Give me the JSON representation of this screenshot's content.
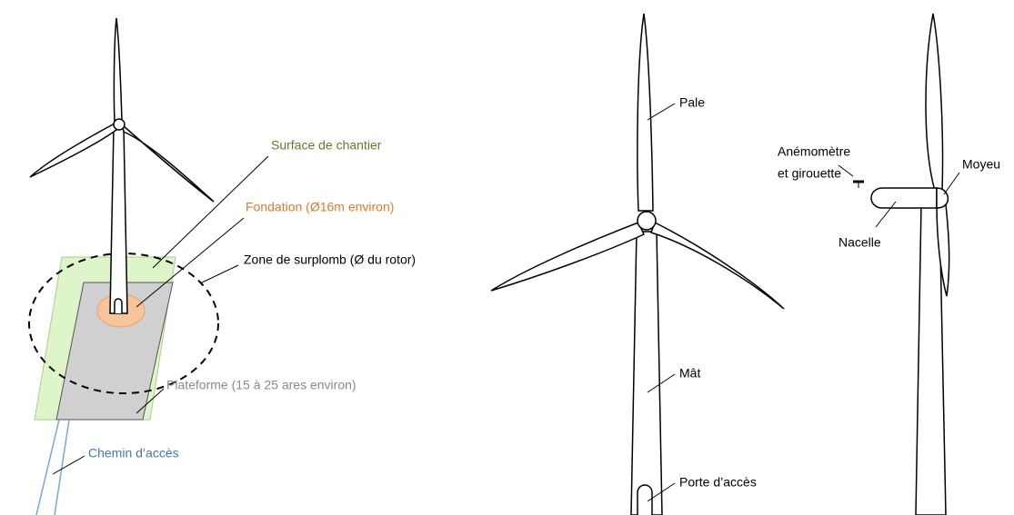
{
  "site": {
    "surface": "Surface de chantier",
    "foundation": "Fondation (Ø16m environ)",
    "overhang": "Zone de surplomb (Ø du rotor)",
    "platform": "Plateforme (15 à 25 ares environ)",
    "access_road": "Chemin d’accès"
  },
  "front": {
    "blade": "Pale",
    "mast": "Mât",
    "door": "Porte d’accès"
  },
  "side": {
    "anemometer": [
      "Anémomètre",
      "et girouette"
    ],
    "hub": "Moyeu",
    "nacelle": "Nacelle"
  }
}
